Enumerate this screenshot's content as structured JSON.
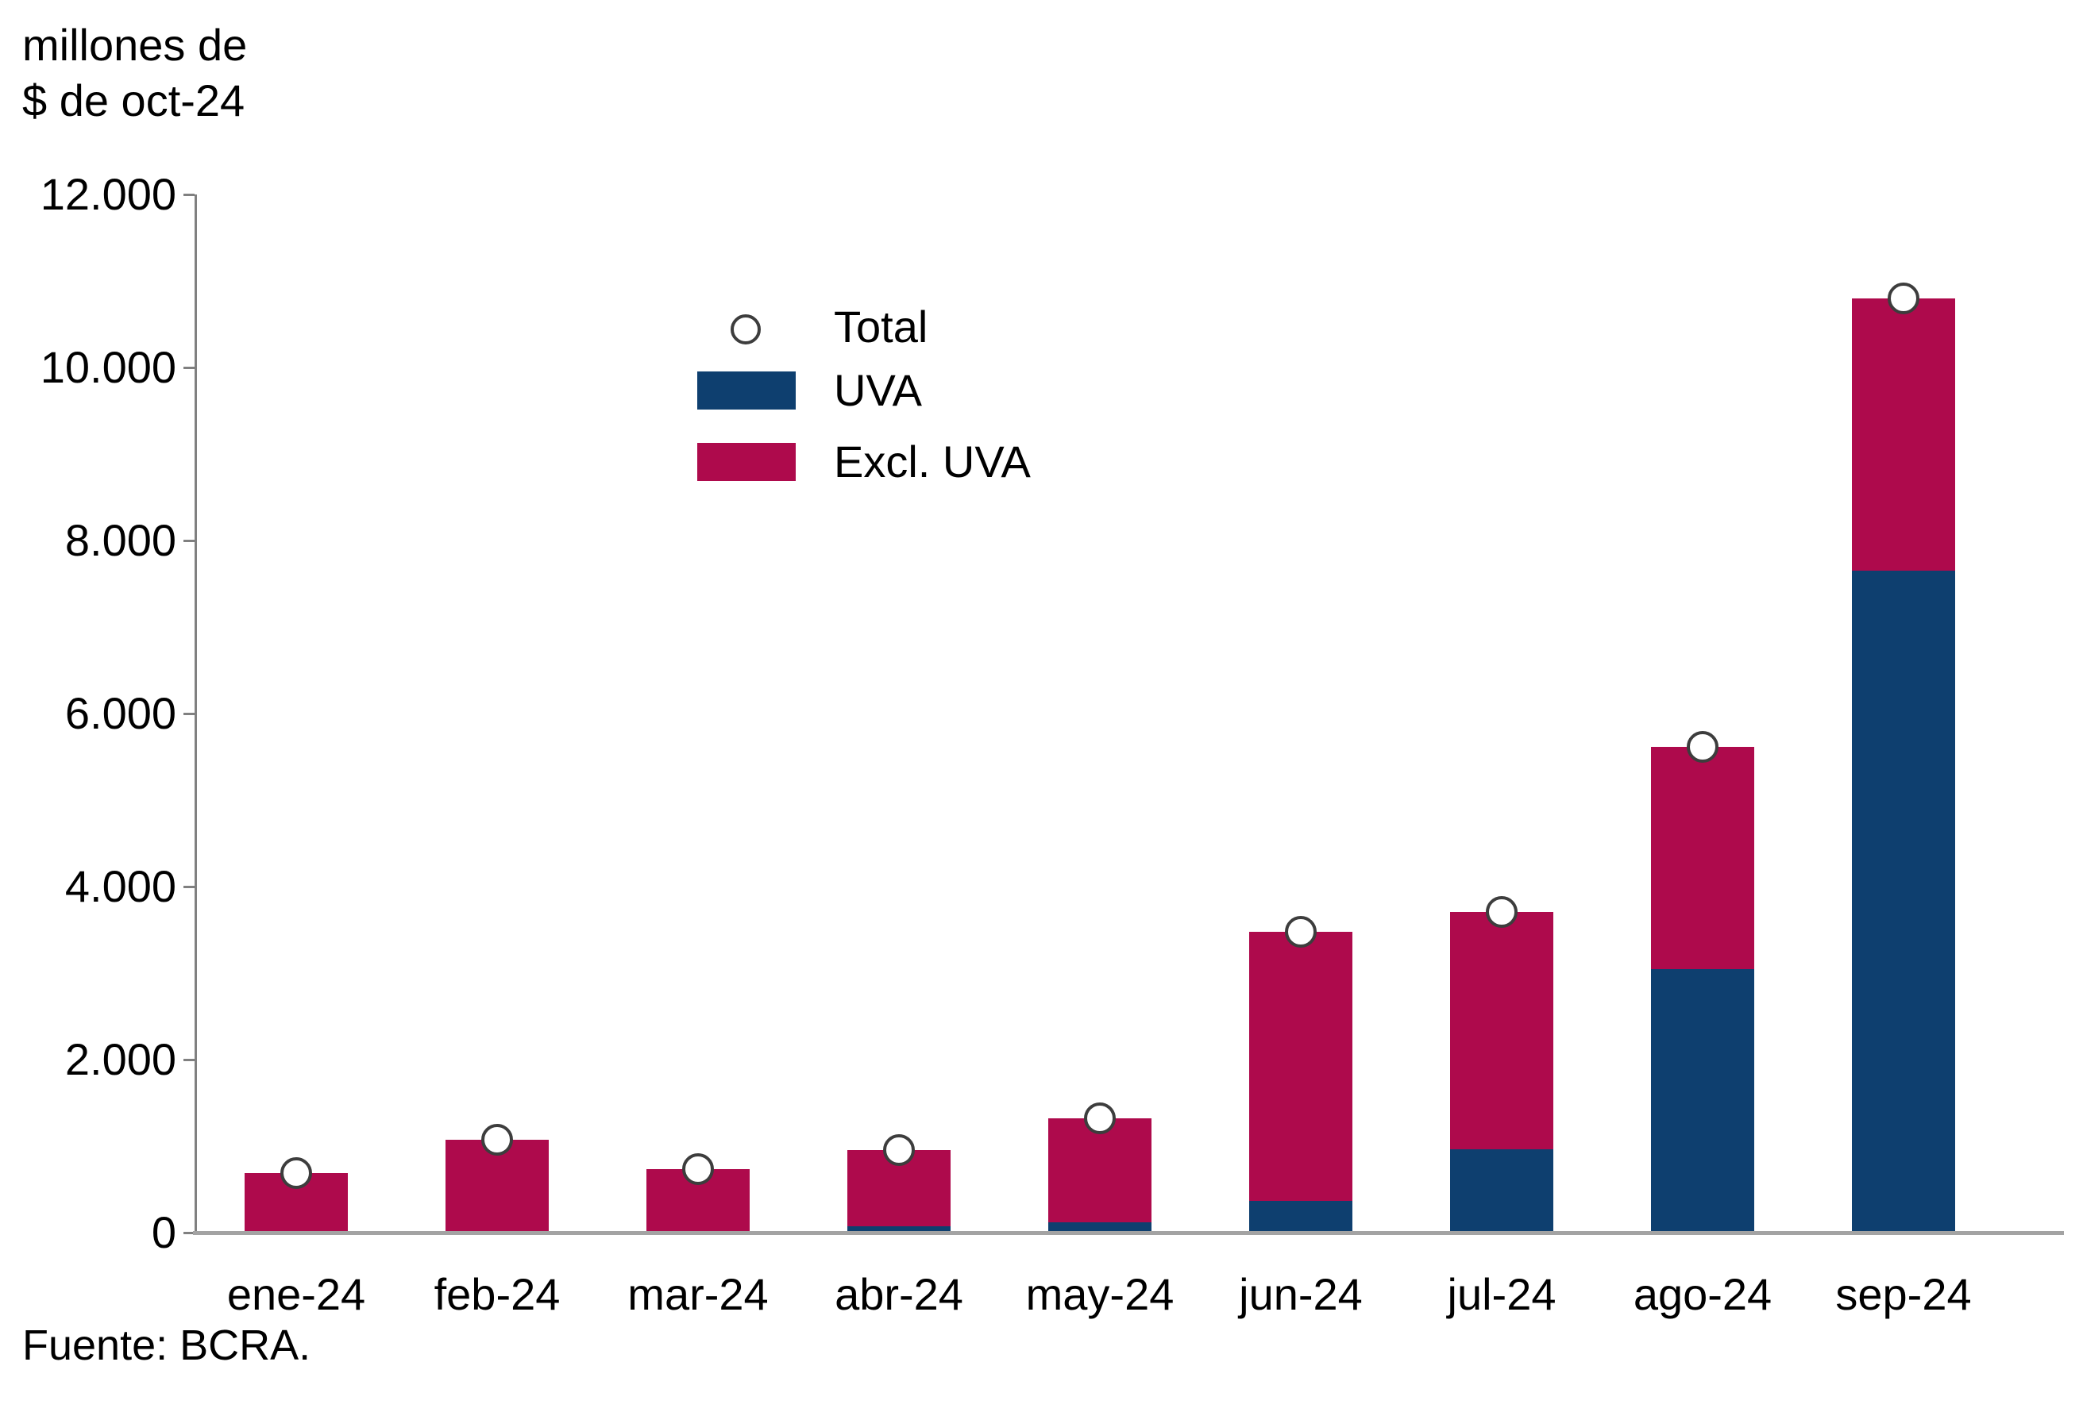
{
  "axis_title": "millones de\n$ de oct-24",
  "footer": "Fuente: BCRA.",
  "legend": {
    "total_label": "Total",
    "uva_label": "UVA",
    "excl_uva_label": "Excl. UVA"
  },
  "colors": {
    "uva": "#0e3f6f",
    "excl_uva": "#ae0a4c",
    "marker_fill": "#ffffff",
    "marker_border": "#3d3d3d",
    "axis_line": "#808080",
    "baseline": "#a3a3a3",
    "text": "#000000"
  },
  "chart_data": {
    "type": "bar",
    "stacked": true,
    "title": "millones de $ de oct-24",
    "xlabel": "",
    "ylabel": "millones de $ de oct-24",
    "ylim": [
      0,
      12000
    ],
    "grid": false,
    "legend_position": "upper-left-inside",
    "categories": [
      "ene-24",
      "feb-24",
      "mar-24",
      "abr-24",
      "may-24",
      "jun-24",
      "jul-24",
      "ago-24",
      "sep-24"
    ],
    "series": [
      {
        "name": "UVA",
        "color": "#0e3f6f",
        "values": [
          0,
          0,
          0,
          70,
          120,
          370,
          960,
          3050,
          7650
        ]
      },
      {
        "name": "Excl. UVA",
        "color": "#ae0a4c",
        "values": [
          690,
          1070,
          730,
          880,
          1200,
          3110,
          2740,
          2570,
          3150
        ]
      }
    ],
    "total_markers": {
      "name": "Total",
      "values": [
        690,
        1070,
        730,
        950,
        1320,
        3480,
        3700,
        5620,
        10800
      ]
    },
    "y_ticks": {
      "values": [
        0,
        2000,
        4000,
        6000,
        8000,
        10000,
        12000
      ],
      "labels": [
        "0",
        "2.000",
        "4.000",
        "6.000",
        "8.000",
        "10.000",
        "12.000"
      ]
    },
    "source": "Fuente: BCRA."
  }
}
